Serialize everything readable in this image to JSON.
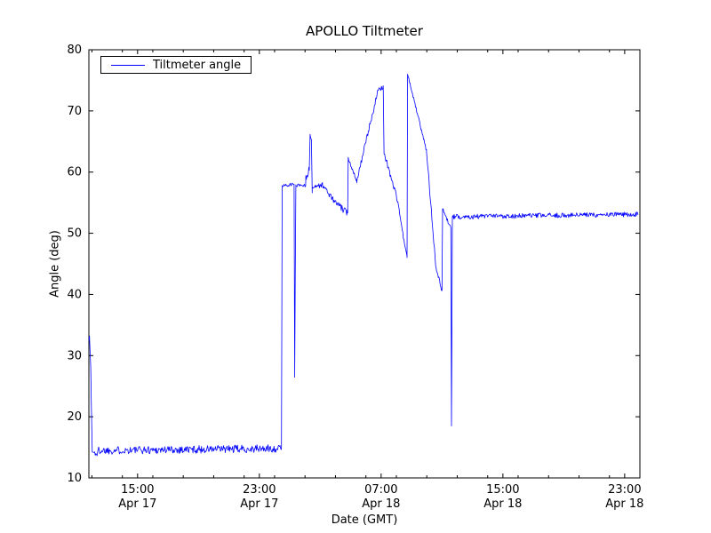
{
  "figure": {
    "background": "#ffffff",
    "axes_color": "#000000"
  },
  "chart_data": {
    "type": "line",
    "title": "APOLLO Tiltmeter",
    "xlabel": "Date (GMT)",
    "ylabel": "Angle (deg)",
    "ylim": [
      10,
      80
    ],
    "xlim_hours": [
      11.8,
      48.0
    ],
    "y_ticks": [
      10,
      20,
      30,
      40,
      50,
      60,
      70,
      80
    ],
    "x_ticks": [
      {
        "hours": 15,
        "time": "15:00",
        "date": "Apr 17"
      },
      {
        "hours": 23,
        "time": "23:00",
        "date": "Apr 17"
      },
      {
        "hours": 31,
        "time": "07:00",
        "date": "Apr 18"
      },
      {
        "hours": 39,
        "time": "15:00",
        "date": "Apr 18"
      },
      {
        "hours": 47,
        "time": "23:00",
        "date": "Apr 18"
      }
    ],
    "minor_tick_every_hours": 2,
    "grid": false,
    "legend_position": "upper left",
    "series": [
      {
        "name": "Tiltmeter angle",
        "color": "#0000ff",
        "segments": [
          {
            "t0": 11.8,
            "t1": 11.84,
            "v0": 32.5,
            "v1": 33.2,
            "n": 0.15
          },
          {
            "t0": 11.84,
            "t1": 11.92,
            "v0": 33.2,
            "v1": 28.0,
            "n": 0.3
          },
          {
            "t0": 11.92,
            "t1": 12.02,
            "v0": 28.0,
            "v1": 14.8,
            "n": 0.3
          },
          {
            "t0": 12.02,
            "t1": 12.4,
            "v0": 14.2,
            "v1": 13.9,
            "n": 0.55
          },
          {
            "t0": 12.4,
            "t1": 24.45,
            "v0": 14.5,
            "v1": 14.8,
            "n": 0.65
          },
          {
            "t0": 24.45,
            "t1": 24.5,
            "v0": 15.2,
            "v1": 57.8,
            "n": 0.1
          },
          {
            "t0": 24.5,
            "t1": 25.28,
            "v0": 57.8,
            "v1": 58.0,
            "n": 0.25
          },
          {
            "t0": 25.28,
            "t1": 25.32,
            "v0": 58.0,
            "v1": 26.5,
            "n": 0.1
          },
          {
            "t0": 25.32,
            "t1": 25.4,
            "v0": 26.5,
            "v1": 57.9,
            "n": 0.1
          },
          {
            "t0": 25.4,
            "t1": 26.05,
            "v0": 57.9,
            "v1": 57.8,
            "n": 0.3
          },
          {
            "t0": 26.05,
            "t1": 26.28,
            "v0": 59.3,
            "v1": 60.3,
            "n": 0.7
          },
          {
            "t0": 26.28,
            "t1": 26.33,
            "v0": 60.3,
            "v1": 66.0,
            "n": 0.1
          },
          {
            "t0": 26.33,
            "t1": 26.42,
            "v0": 66.0,
            "v1": 65.3,
            "n": 0.2
          },
          {
            "t0": 26.42,
            "t1": 26.47,
            "v0": 65.3,
            "v1": 56.6,
            "n": 0.1
          },
          {
            "t0": 26.47,
            "t1": 27.15,
            "v0": 57.6,
            "v1": 57.9,
            "n": 0.4
          },
          {
            "t0": 27.15,
            "t1": 27.9,
            "v0": 57.9,
            "v1": 55.3,
            "n": 0.45
          },
          {
            "t0": 27.9,
            "t1": 28.58,
            "v0": 55.3,
            "v1": 53.7,
            "n": 0.5
          },
          {
            "t0": 28.58,
            "t1": 28.8,
            "v0": 53.7,
            "v1": 53.3,
            "n": 0.6
          },
          {
            "t0": 28.8,
            "t1": 28.84,
            "v0": 53.3,
            "v1": 62.3,
            "n": 0.1
          },
          {
            "t0": 28.84,
            "t1": 29.4,
            "v0": 62.3,
            "v1": 58.6,
            "n": 0.3
          },
          {
            "t0": 29.4,
            "t1": 30.78,
            "v0": 58.6,
            "v1": 73.2,
            "n": 0.45
          },
          {
            "t0": 30.78,
            "t1": 31.14,
            "v0": 73.2,
            "v1": 74.0,
            "n": 0.4
          },
          {
            "t0": 31.14,
            "t1": 31.19,
            "v0": 74.0,
            "v1": 63.2,
            "n": 0.15
          },
          {
            "t0": 31.19,
            "t1": 32.1,
            "v0": 63.2,
            "v1": 55.2,
            "n": 0.5
          },
          {
            "t0": 32.1,
            "t1": 32.42,
            "v0": 55.2,
            "v1": 50.0,
            "n": 0.4
          },
          {
            "t0": 32.42,
            "t1": 32.7,
            "v0": 50.0,
            "v1": 46.0,
            "n": 0.3
          },
          {
            "t0": 32.7,
            "t1": 32.74,
            "v0": 46.0,
            "v1": 76.0,
            "n": 0.1
          },
          {
            "t0": 32.74,
            "t1": 33.98,
            "v0": 76.0,
            "v1": 63.5,
            "n": 0.25
          },
          {
            "t0": 33.98,
            "t1": 34.6,
            "v0": 63.5,
            "v1": 44.5,
            "n": 0.5
          },
          {
            "t0": 34.6,
            "t1": 35.0,
            "v0": 44.5,
            "v1": 40.6,
            "n": 0.4
          },
          {
            "t0": 35.0,
            "t1": 35.04,
            "v0": 40.6,
            "v1": 54.0,
            "n": 0.1
          },
          {
            "t0": 35.04,
            "t1": 35.58,
            "v0": 54.0,
            "v1": 50.8,
            "n": 0.3
          },
          {
            "t0": 35.58,
            "t1": 35.62,
            "v0": 50.8,
            "v1": 18.5,
            "n": 0.1
          },
          {
            "t0": 35.62,
            "t1": 35.68,
            "v0": 18.5,
            "v1": 52.4,
            "n": 0.1
          },
          {
            "t0": 35.68,
            "t1": 47.9,
            "v0": 52.7,
            "v1": 53.1,
            "n": 0.4
          }
        ]
      }
    ]
  }
}
